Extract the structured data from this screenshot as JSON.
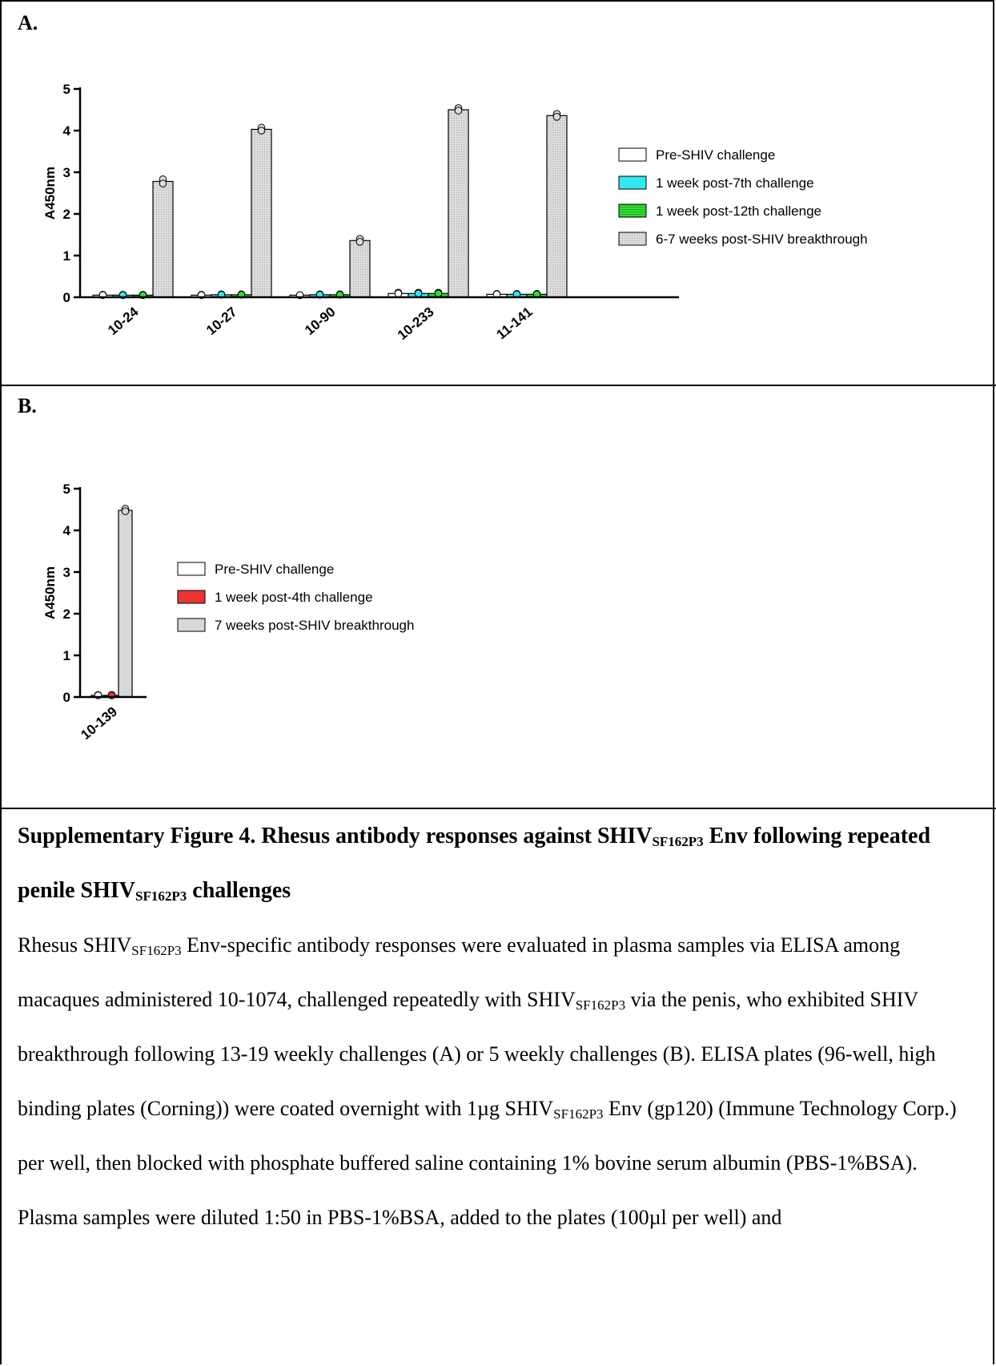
{
  "panels": {
    "a_label": "A.",
    "b_label": "B."
  },
  "chart_data": [
    {
      "type": "bar",
      "ylabel": "A450nm",
      "ylim": [
        0,
        5
      ],
      "yticks": [
        "0",
        "1",
        "2",
        "3",
        "4",
        "5"
      ],
      "categories": [
        "10-24",
        "10-27",
        "10-90",
        "10-233",
        "11-141"
      ],
      "legend_position": "right",
      "series": [
        {
          "name": "Pre-SHIV challenge",
          "color": "#ffffff",
          "values": [
            0.05,
            0.05,
            0.05,
            0.09,
            0.07
          ],
          "points": [
            [
              0.06,
              0.05
            ],
            [
              0.06,
              0.05
            ],
            [
              0.05,
              0.05
            ],
            [
              0.11,
              0.09
            ],
            [
              0.08,
              0.07
            ]
          ]
        },
        {
          "name": "1 week post-7th challenge",
          "color": "#33e6f0",
          "values": [
            0.05,
            0.06,
            0.06,
            0.09,
            0.07
          ],
          "points": [
            [
              0.06,
              0.05
            ],
            [
              0.07,
              0.06
            ],
            [
              0.07,
              0.06
            ],
            [
              0.11,
              0.09
            ],
            [
              0.08,
              0.07
            ]
          ]
        },
        {
          "name": "1 week post-12th challenge",
          "color": "#33dd33",
          "values": [
            0.05,
            0.06,
            0.06,
            0.09,
            0.07
          ],
          "points": [
            [
              0.06,
              0.05
            ],
            [
              0.07,
              0.06
            ],
            [
              0.07,
              0.06
            ],
            [
              0.11,
              0.09
            ],
            [
              0.08,
              0.07
            ]
          ]
        },
        {
          "name": "6-7 weeks post-SHIV breakthrough",
          "color": "#dddddd",
          "values": [
            2.78,
            4.03,
            1.36,
            4.5,
            4.36
          ],
          "points": [
            [
              2.83,
              2.73
            ],
            [
              4.07,
              4.0
            ],
            [
              1.4,
              1.33
            ],
            [
              4.54,
              4.48
            ],
            [
              4.4,
              4.33
            ]
          ]
        }
      ]
    },
    {
      "type": "bar",
      "ylabel": "A450nm",
      "ylim": [
        0,
        5
      ],
      "yticks": [
        "0",
        "1",
        "2",
        "3",
        "4",
        "5"
      ],
      "categories": [
        "10-139"
      ],
      "legend_position": "right",
      "series": [
        {
          "name": "Pre-SHIV challenge",
          "color": "#ffffff",
          "values": [
            0.04
          ],
          "points": [
            [
              0.05,
              0.04
            ]
          ]
        },
        {
          "name": "1 week post-4th challenge",
          "color": "#ee3333",
          "values": [
            0.04
          ],
          "points": [
            [
              0.05,
              0.04
            ]
          ]
        },
        {
          "name": "7 weeks post-SHIV breakthrough",
          "color": "#d8d8d8",
          "values": [
            4.48
          ],
          "points": [
            [
              4.52,
              4.46
            ]
          ]
        }
      ]
    }
  ],
  "caption": {
    "title_parts": [
      "Supplementary Figure 4.  Rhesus antibody responses against SHIV",
      "SF162P3",
      " Env following repeated penile SHIV",
      "SF162P3",
      " challenges"
    ],
    "body_parts": [
      "Rhesus SHIV",
      "SF162P3",
      " Env-specific antibody responses were evaluated in plasma samples via ELISA among macaques administered 10-1074, challenged repeatedly with SHIV",
      "SF162P3",
      " via the penis, who exhibited SHIV breakthrough following 13-19 weekly challenges (A) or 5 weekly challenges (B).  ELISA plates (96-well, high binding plates (Corning)) were coated overnight with 1µg SHIV",
      "SF162P3",
      " Env (gp120) (Immune Technology Corp.) per well, then blocked with phosphate buffered saline containing 1% bovine serum albumin (PBS-1%BSA). Plasma samples were diluted 1:50 in PBS-1%BSA, added to the plates (100µl per well) and"
    ]
  }
}
